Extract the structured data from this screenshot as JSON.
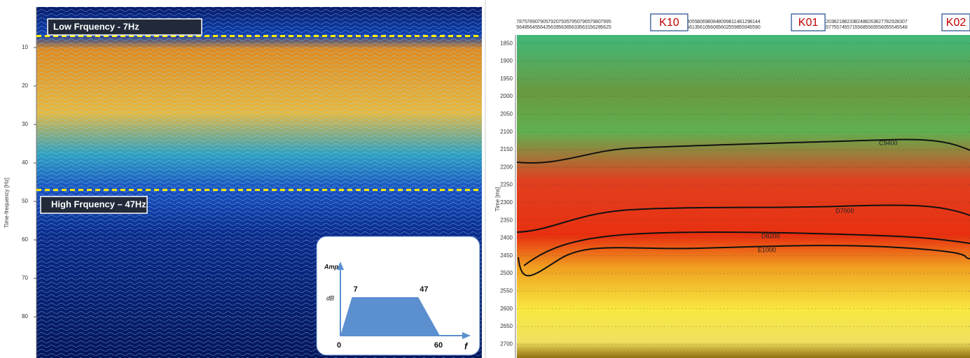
{
  "left_panel": {
    "y_label": "Time-frequency [Hz]",
    "ylim": [
      0,
      90.7
    ],
    "yticks": [
      10,
      20,
      30,
      40,
      50,
      60,
      70,
      80
    ],
    "low_label": "Low Frquency - 7Hz",
    "high_label": "High Frquency – 47Hz",
    "inset": {
      "y_label": "Amp",
      "unit_label": "dB",
      "x_label": "f",
      "origin": 0,
      "low": 7,
      "high": 47,
      "end": 60
    }
  },
  "right_panel": {
    "y_label": "Time [ms]",
    "ylim": [
      1826,
      2739
    ],
    "yticks": [
      1850,
      1900,
      1950,
      2000,
      2050,
      2100,
      2150,
      2200,
      2250,
      2300,
      2350,
      2400,
      2450,
      2500,
      2550,
      2600,
      2650,
      2700
    ],
    "trace_headers": [
      [
        [
          7875,
          5648
        ],
        [
          7890,
          5645
        ],
        [
          7905,
          5642
        ],
        [
          7920,
          5639
        ],
        [
          7935,
          5636
        ],
        [
          7950,
          5633
        ],
        [
          7965,
          5631
        ],
        [
          7980,
          5628
        ],
        [
          7995,
          5625
        ]
      ],
      [
        [
          8055,
          5613
        ],
        [
          8069,
          5610
        ],
        [
          8084,
          5606
        ],
        [
          8099,
          5602
        ],
        [
          8114,
          5598
        ],
        [
          8129,
          5594
        ],
        [
          8144,
          5590
        ]
      ],
      [
        [
          8203,
          5577
        ],
        [
          8218,
          5574
        ],
        [
          8233,
          5571
        ],
        [
          8248,
          5568
        ],
        [
          8263,
          5565
        ],
        [
          8277,
          5560
        ],
        [
          8292,
          5554
        ],
        [
          8307,
          5548
        ]
      ]
    ],
    "wells": [
      "K10",
      "K01",
      "K02"
    ],
    "horizons": [
      "C9400",
      "D7000",
      "D8200",
      "E1000"
    ]
  }
}
